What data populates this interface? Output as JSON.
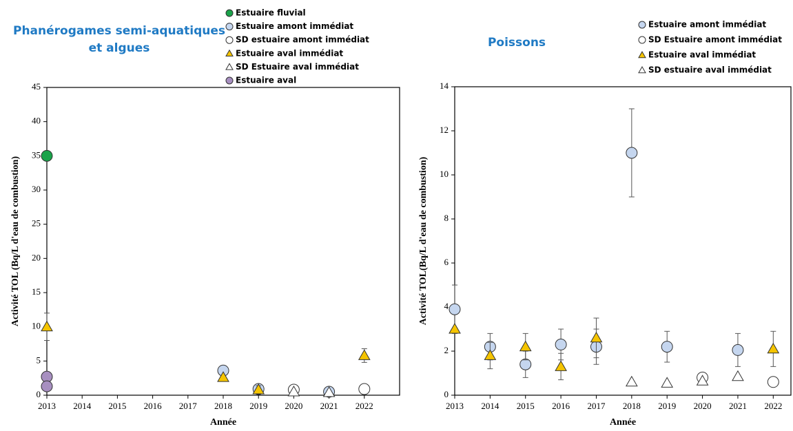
{
  "chart_data": [
    {
      "type": "scatter",
      "title": [
        "Phanérogames semi-aquatiques",
        "et algues"
      ],
      "x_label": "Année",
      "y_label": "Activité TOL (Bq/L d'eau de combustion)",
      "xlim": [
        2013,
        2023
      ],
      "xticks": [
        2013,
        2014,
        2015,
        2016,
        2017,
        2018,
        2019,
        2020,
        2021,
        2022
      ],
      "ylim": [
        0,
        45
      ],
      "yticks": [
        0,
        5,
        10,
        15,
        20,
        25,
        30,
        35,
        40,
        45
      ],
      "series": [
        {
          "name": "Estuaire fluvial",
          "color": "#1aa34a",
          "marker": "circle",
          "x": [
            2013
          ],
          "values": [
            35
          ]
        },
        {
          "name": "Estuaire amont immédiat",
          "color": "#c5d6ef",
          "marker": "circle",
          "x": [
            2018,
            2019,
            2021
          ],
          "values": [
            3.6,
            0.9,
            0.5
          ],
          "errors": [
            0.7,
            null,
            null
          ]
        },
        {
          "name": "SD estuaire amont immédiat",
          "color": "#ffffff",
          "marker": "circle",
          "x": [
            2020,
            2022
          ],
          "values": [
            0.8,
            0.9
          ]
        },
        {
          "name": "Estuaire aval immédiat",
          "color": "#f5c400",
          "marker": "triangle",
          "x": [
            2013,
            2018,
            2019,
            2022
          ],
          "values": [
            10,
            2.6,
            0.8,
            5.8
          ],
          "errors": [
            2,
            null,
            0.6,
            1
          ]
        },
        {
          "name": "SD Estuaire aval immédiat",
          "color": "#ffffff",
          "marker": "triangle",
          "x": [
            2020,
            2021
          ],
          "values": [
            0.5,
            0.4
          ]
        },
        {
          "name": "Estuaire aval",
          "color": "#a78fc0",
          "marker": "circle",
          "x": [
            2013,
            2013
          ],
          "values": [
            2.7,
            1.3
          ]
        }
      ]
    },
    {
      "type": "scatter",
      "title": [
        "Poissons"
      ],
      "x_label": "Année",
      "y_label": "Activité TOL(Bq/L d'eau de combustion)",
      "xlim": [
        2013,
        2022.5
      ],
      "xticks": [
        2013,
        2014,
        2015,
        2016,
        2017,
        2018,
        2019,
        2020,
        2021,
        2022
      ],
      "ylim": [
        0,
        14
      ],
      "yticks": [
        0,
        2,
        4,
        6,
        8,
        10,
        12,
        14
      ],
      "series": [
        {
          "name": "Estuaire amont immédiat",
          "color": "#c5d6ef",
          "marker": "circle",
          "x": [
            2013,
            2014,
            2015,
            2016,
            2017,
            2018,
            2019,
            2021
          ],
          "values": [
            3.9,
            2.2,
            1.4,
            2.3,
            2.2,
            11,
            2.2,
            2.05
          ],
          "errors": [
            1.1,
            0.6,
            0.6,
            0.7,
            0.8,
            2,
            0.7,
            0.75
          ]
        },
        {
          "name": "SD Estuaire amont immédiat",
          "color": "#ffffff",
          "marker": "circle",
          "x": [
            2020,
            2022
          ],
          "values": [
            0.8,
            0.6
          ]
        },
        {
          "name": "Estuaire aval immédiat",
          "color": "#f5c400",
          "marker": "triangle",
          "x": [
            2013,
            2014,
            2015,
            2016,
            2017,
            2022
          ],
          "values": [
            3.0,
            1.8,
            2.2,
            1.3,
            2.6,
            2.1
          ],
          "errors": [
            null,
            0.6,
            0.6,
            0.6,
            0.9,
            0.8
          ]
        },
        {
          "name": "SD estuaire aval immédiat",
          "color": "#ffffff",
          "marker": "triangle",
          "x": [
            2018,
            2019,
            2020,
            2021
          ],
          "values": [
            0.6,
            0.55,
            0.65,
            0.85
          ]
        }
      ]
    }
  ]
}
